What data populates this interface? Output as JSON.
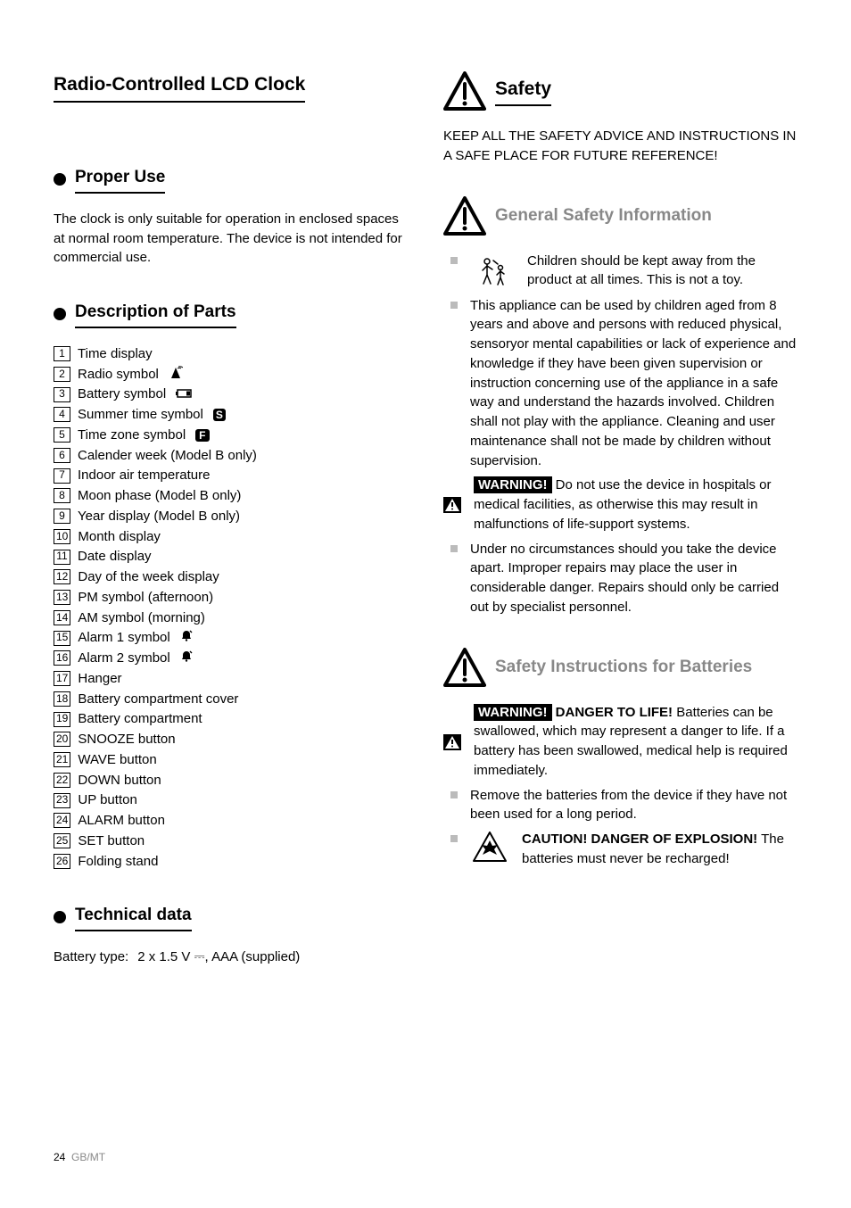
{
  "page": {
    "footer": "24",
    "footer_region": "GB/MT"
  },
  "titles": {
    "main": "Radio-Controlled LCD Clock",
    "proper_use": "Proper Use",
    "description": "Description of Parts",
    "technical": "Technical data",
    "safety": "Safety",
    "general_safety": "General Safety Information",
    "batteries": "Safety Instructions for Batteries"
  },
  "proper_use_text": "The clock is only suitable for operation in enclosed spaces at normal room temperature. The device is not intended for commercial use.",
  "parts": [
    "Time display",
    "Radio symbol",
    "Battery symbol",
    "Summer time symbol",
    "Time zone symbol",
    "Calender week (Model B only)",
    "Indoor air temperature",
    "Moon phase (Model B only)",
    "Year display (Model B only)",
    "Month display",
    "Date display",
    "Day of the week display",
    "PM symbol (afternoon)",
    "AM symbol (morning)",
    "Alarm 1 symbol",
    "Alarm 2 symbol",
    "Hanger",
    "Battery compartment cover",
    "Battery compartment",
    "SNOOZE button",
    "WAVE button",
    "DOWN button",
    "UP button",
    "ALARM button",
    "SET button",
    "Folding stand"
  ],
  "icon_glyph": {
    "radio": "radio-icon",
    "battery": "battery-icon",
    "s_box": "S",
    "f_box": "F",
    "bell": "bell-icon"
  },
  "technical": {
    "label": "Battery type:",
    "value": "2 x 1.5 V ⎓, AAA (supplied)"
  },
  "safety_intro": "KEEP ALL THE SAFETY ADVICE AND INSTRUCTIONS IN A SAFE PLACE FOR FUTURE REFERENCE!",
  "general_safety_items": {
    "children": "Children should be kept away from the product at all times. This is not a toy.",
    "supervision": "This appliance can be used by children aged from 8 years and above and persons with reduced physical, sensoryor mental capabilities or lack of experience and knowledge if they have been given supervision or instruction concerning use of the appliance in a safe way and understand the hazards involved. Children shall not play with the appliance. Cleaning and user maintenance shall not be made by children without supervision.",
    "hospital_label": "WARNING!",
    "hospital": " Do not use the device in hospitals or medical facilities, as otherwise this may result in malfunctions of life-support systems.",
    "repair": "Under no circumstances should you take the device apart. Improper repairs may place the user in considerable danger. Repairs should only be carried out by specialist personnel."
  },
  "battery_items": {
    "swallow_label": "WARNING!",
    "swallow_bold": " DANGER TO LIFE! ",
    "swallow": "Batteries can be swallowed, which may represent a danger to life. If a battery has been swallowed, medical help is required immediately.",
    "remove": "Remove the batteries from the device if they have not been used for a long period.",
    "explosion_bold": "CAUTION! DANGER OF EXPLOSION!",
    "explosion": " The batteries must never be recharged!"
  },
  "colors": {
    "grey": "#888888",
    "bullet_grey": "#bbbbbb",
    "black": "#000000"
  }
}
